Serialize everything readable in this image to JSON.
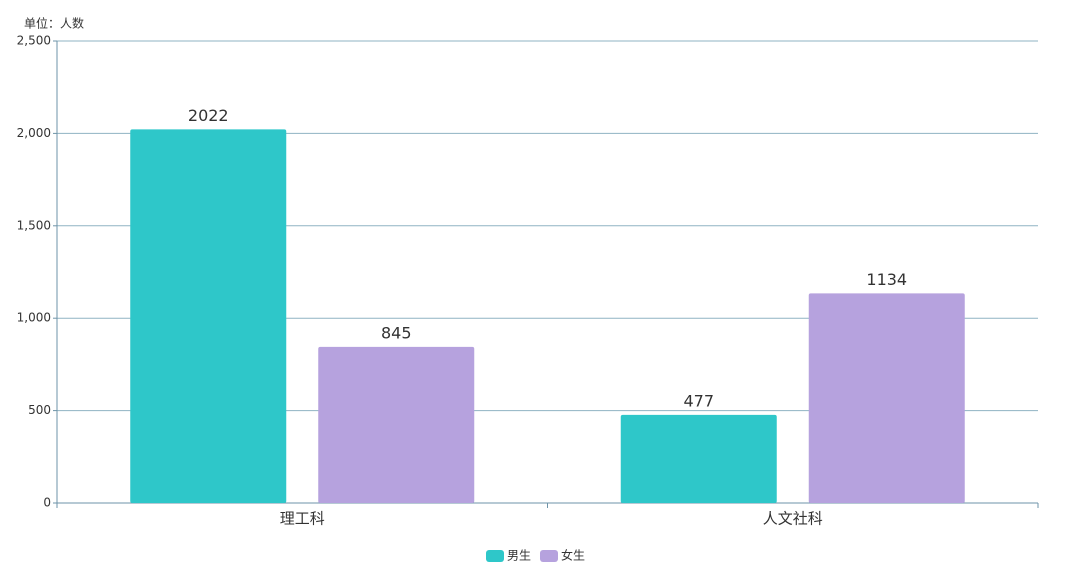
{
  "chart_data": {
    "type": "bar",
    "unit_label": "单位：人数",
    "categories": [
      "理工科",
      "人文社科"
    ],
    "series": [
      {
        "name": "男生",
        "color": "#2ec7c9",
        "values": [
          2022,
          477
        ]
      },
      {
        "name": "女生",
        "color": "#b6a2de",
        "values": [
          845,
          1134
        ]
      }
    ],
    "ylim": [
      0,
      2500
    ],
    "yticks": [
      0,
      500,
      {
        "value": 1000,
        "label": "1,000"
      },
      {
        "value": 1500,
        "label": "1,500"
      },
      {
        "value": 2000,
        "label": "2,000"
      },
      {
        "value": 2500,
        "label": "2,500"
      }
    ],
    "grid": true,
    "legend": "bottom"
  }
}
